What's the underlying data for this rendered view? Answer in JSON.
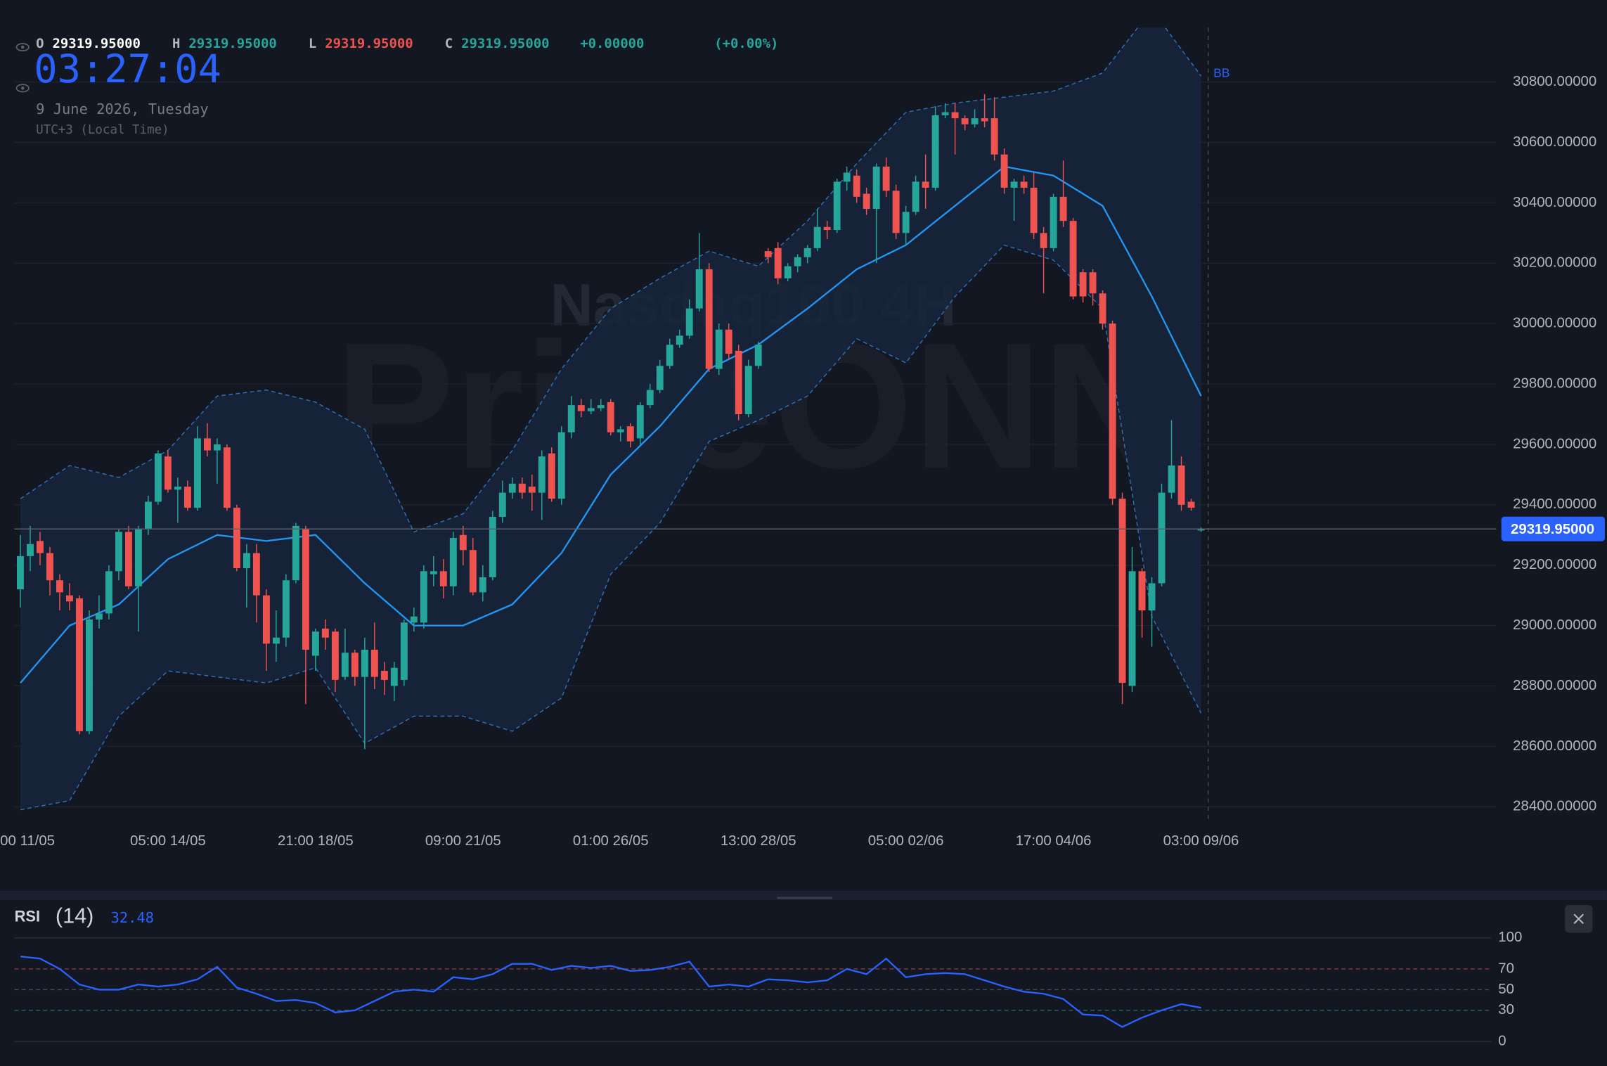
{
  "chart_data": [
    {
      "type": "candlestick",
      "title": "Nasdaq100 4H",
      "watermark": "PriceONN",
      "ohlc_legend": {
        "o_label": "O",
        "o": "29319.95000",
        "h_label": "H",
        "h": "29319.95000",
        "l_label": "L",
        "l": "29319.95000",
        "c_label": "C",
        "c": "29319.95000",
        "change": "+0.00000",
        "change_pct": "(+0.00%)"
      },
      "clock": "03:27:04",
      "date": "9 June 2026, Tuesday",
      "timezone": "UTC+3 (Local Time)",
      "up_color": "#26a69a",
      "down_color": "#ef5350",
      "open": [
        29120,
        29230,
        29280,
        29240,
        29150,
        29100,
        29090,
        28650,
        29020,
        29040,
        29180,
        29310,
        29130,
        29320,
        29410,
        29560,
        29450,
        29460,
        29390,
        29620,
        29580,
        29590,
        29390,
        29190,
        29240,
        29100,
        28940,
        28960,
        29150,
        29320,
        28900,
        28990,
        28980,
        28830,
        28910,
        28830,
        28920,
        28850,
        28800,
        28820,
        29010,
        29010,
        29170,
        29180,
        29130,
        29300,
        29250,
        29110,
        29160,
        29360,
        29440,
        29470,
        29460,
        29440,
        29570,
        29420,
        29640,
        29730,
        29710,
        29720,
        29740,
        29640,
        29660,
        29620,
        29730,
        29780,
        29860,
        29930,
        29960,
        30050,
        30180,
        29850,
        29980,
        29910,
        29700,
        29860,
        30240,
        30250,
        30150,
        30190,
        30220,
        30250,
        30320,
        30310,
        30470,
        30490,
        30430,
        30380,
        30520,
        30440,
        30300,
        30370,
        30470,
        30450,
        30690,
        30700,
        30680,
        30660,
        30680,
        30680,
        30560,
        30450,
        30470,
        30450,
        30300,
        30250,
        30420,
        30340,
        30170,
        30170,
        30100,
        30000,
        29420,
        28800,
        29180,
        29050,
        29140,
        29440,
        29530,
        29410,
        29315
      ],
      "high": [
        29300,
        29330,
        29310,
        29260,
        29170,
        29140,
        29100,
        29050,
        29100,
        29200,
        29320,
        29330,
        29330,
        29430,
        29580,
        29580,
        29490,
        29480,
        29660,
        29670,
        29620,
        29600,
        29400,
        29270,
        29270,
        29120,
        29050,
        29170,
        29340,
        29330,
        28990,
        29020,
        28990,
        28990,
        28920,
        28960,
        29010,
        28880,
        28880,
        29020,
        29060,
        29200,
        29230,
        29220,
        29310,
        29330,
        29290,
        29200,
        29380,
        29480,
        29490,
        29490,
        29500,
        29580,
        29590,
        29660,
        29760,
        29750,
        29750,
        29750,
        29750,
        29660,
        29670,
        29740,
        29800,
        29880,
        29950,
        29980,
        30080,
        30300,
        30200,
        30000,
        30000,
        29930,
        29880,
        29940,
        30250,
        30270,
        30200,
        30230,
        30260,
        30380,
        30340,
        30480,
        30520,
        30510,
        30450,
        30530,
        30550,
        30460,
        30390,
        30490,
        30560,
        30720,
        30730,
        30730,
        30690,
        30710,
        30760,
        30750,
        30580,
        30480,
        30490,
        30500,
        30320,
        30430,
        30540,
        30350,
        30180,
        30180,
        30110,
        30010,
        29440,
        29260,
        29190,
        29160,
        29470,
        29680,
        29560,
        29420,
        29325
      ],
      "low": [
        29060,
        29180,
        29200,
        29100,
        29050,
        29050,
        28640,
        28640,
        28990,
        29020,
        29150,
        29120,
        28980,
        29300,
        29400,
        29440,
        29340,
        29380,
        29380,
        29560,
        29470,
        29380,
        29180,
        29060,
        29010,
        28850,
        28880,
        28930,
        29140,
        28740,
        28850,
        28920,
        28780,
        28820,
        28800,
        28590,
        28790,
        28770,
        28750,
        28800,
        28980,
        28990,
        29130,
        29090,
        29100,
        29200,
        29100,
        29080,
        29150,
        29340,
        29420,
        29420,
        29380,
        29350,
        29410,
        29400,
        29620,
        29690,
        29700,
        29710,
        29630,
        29610,
        29590,
        29600,
        29720,
        29770,
        29850,
        29920,
        29950,
        30040,
        29840,
        29830,
        29880,
        29680,
        29690,
        29850,
        30200,
        30130,
        30140,
        30170,
        30200,
        30240,
        30280,
        30300,
        30440,
        30400,
        30360,
        30200,
        30420,
        30280,
        30260,
        30360,
        30380,
        30440,
        30680,
        30560,
        30640,
        30650,
        30650,
        30540,
        30430,
        30340,
        30430,
        30280,
        30100,
        30240,
        30320,
        30080,
        30070,
        30060,
        29980,
        29400,
        28740,
        28780,
        28960,
        28930,
        29130,
        29420,
        29380,
        29380,
        29310
      ],
      "close": [
        29230,
        29270,
        29240,
        29150,
        29110,
        29080,
        28650,
        29020,
        29040,
        29180,
        29310,
        29130,
        29320,
        29410,
        29570,
        29450,
        29460,
        29390,
        29620,
        29580,
        29600,
        29390,
        29190,
        29240,
        29100,
        28940,
        28960,
        29150,
        29330,
        28920,
        28980,
        28960,
        28820,
        28910,
        28830,
        28920,
        28830,
        28820,
        28860,
        29010,
        29030,
        29180,
        29180,
        29130,
        29290,
        29250,
        29110,
        29160,
        29360,
        29440,
        29470,
        29440,
        29440,
        29560,
        29420,
        29640,
        29730,
        29710,
        29720,
        29730,
        29640,
        29650,
        29610,
        29730,
        29780,
        29860,
        29930,
        29960,
        30050,
        30180,
        29850,
        29980,
        29900,
        29700,
        29860,
        29930,
        30220,
        30150,
        30190,
        30220,
        30250,
        30320,
        30310,
        30470,
        30500,
        30420,
        30380,
        30520,
        30440,
        30300,
        30370,
        30470,
        30450,
        30690,
        30700,
        30680,
        30660,
        30680,
        30670,
        30560,
        30450,
        30470,
        30450,
        30300,
        30250,
        30420,
        30340,
        30090,
        30090,
        30100,
        30000,
        29420,
        28810,
        29180,
        29050,
        29140,
        29440,
        29530,
        29400,
        29390,
        29320
      ],
      "bollinger": {
        "name": "BB",
        "line_color": "#2196f3",
        "band_color": "#2f6fb8",
        "fill_color": "#17253b",
        "x": [
          0,
          5,
          10,
          15,
          20,
          25,
          30,
          35,
          40,
          45,
          50,
          55,
          60,
          65,
          70,
          75,
          80,
          85,
          90,
          95,
          100,
          105,
          110,
          115,
          120
        ],
        "upper": [
          29420,
          29530,
          29490,
          29580,
          29760,
          29780,
          29740,
          29650,
          29310,
          29370,
          29580,
          29850,
          30050,
          30150,
          30240,
          30190,
          30340,
          30530,
          30700,
          30730,
          30750,
          30770,
          30830,
          31040,
          30820
        ],
        "middle": [
          28810,
          29000,
          29070,
          29220,
          29300,
          29280,
          29300,
          29140,
          29000,
          29000,
          29070,
          29240,
          29500,
          29660,
          29850,
          29930,
          30050,
          30180,
          30260,
          30390,
          30520,
          30490,
          30390,
          30090,
          29760
        ],
        "lower": [
          28390,
          28420,
          28700,
          28850,
          28830,
          28810,
          28860,
          28610,
          28700,
          28700,
          28650,
          28760,
          29170,
          29340,
          29610,
          29680,
          29760,
          29950,
          29870,
          30090,
          30260,
          30210,
          30050,
          29030,
          28710
        ]
      },
      "last_price": {
        "value": 29319.95,
        "label": "29319.95000"
      },
      "xlim": [
        -0.6,
        150
      ],
      "xticks": [
        {
          "value": 0,
          "label": "00 11/05"
        },
        {
          "value": 15,
          "label": "05:00 14/05"
        },
        {
          "value": 30,
          "label": "21:00 18/05"
        },
        {
          "value": 45,
          "label": "09:00 21/05"
        },
        {
          "value": 60,
          "label": "01:00 26/05"
        },
        {
          "value": 75,
          "label": "13:00 28/05"
        },
        {
          "value": 90,
          "label": "05:00 02/06"
        },
        {
          "value": 105,
          "label": "17:00 04/06"
        },
        {
          "value": 120,
          "label": "03:00 09/06"
        }
      ],
      "ylim": [
        28356,
        30980
      ],
      "yticks": [
        {
          "value": 28400,
          "label": "28400.00000"
        },
        {
          "value": 28600,
          "label": "28600.00000"
        },
        {
          "value": 28800,
          "label": "28800.00000"
        },
        {
          "value": 29000,
          "label": "29000.00000"
        },
        {
          "value": 29200,
          "label": "29200.00000"
        },
        {
          "value": 29400,
          "label": "29400.00000"
        },
        {
          "value": 29600,
          "label": "29600.00000"
        },
        {
          "value": 29800,
          "label": "29800.00000"
        },
        {
          "value": 30000,
          "label": "30000.00000"
        },
        {
          "value": 30200,
          "label": "30200.00000"
        },
        {
          "value": 30400,
          "label": "30400.00000"
        },
        {
          "value": 30600,
          "label": "30600.00000"
        },
        {
          "value": 30800,
          "label": "30800.00000"
        }
      ],
      "grid": true
    },
    {
      "type": "line",
      "title": "RSI",
      "subtitle": "(14)",
      "last_value": 32.48,
      "color": "#2962ff",
      "x": [
        0,
        2,
        4,
        6,
        8,
        10,
        12,
        14,
        16,
        18,
        20,
        22,
        24,
        26,
        28,
        30,
        32,
        34,
        36,
        38,
        40,
        42,
        44,
        46,
        48,
        50,
        52,
        54,
        56,
        58,
        60,
        62,
        64,
        66,
        68,
        70,
        72,
        74,
        76,
        78,
        80,
        82,
        84,
        86,
        88,
        90,
        92,
        94,
        96,
        98,
        100,
        102,
        104,
        106,
        108,
        110,
        112,
        114,
        116,
        118,
        120
      ],
      "values": [
        82,
        80,
        70,
        55,
        50,
        50,
        55,
        53,
        55,
        60,
        72,
        52,
        46,
        39,
        40,
        37,
        28,
        30,
        39,
        48,
        50,
        48,
        62,
        60,
        65,
        75,
        75,
        69,
        73,
        71,
        73,
        68,
        69,
        72,
        77,
        53,
        55,
        53,
        60,
        59,
        57,
        59,
        70,
        65,
        80,
        62,
        65,
        66,
        65,
        59,
        53,
        48,
        46,
        41,
        26,
        25,
        14,
        23,
        30,
        36,
        32.48
      ],
      "xlim": [
        -0.6,
        150
      ],
      "ylim": [
        0,
        100
      ],
      "yticks": [
        100,
        70,
        50,
        30,
        0
      ],
      "tick_colors": [
        "#2a2e39",
        "#8a3a40",
        "#3e4a56",
        "#2d5c5c",
        "#2a2e39"
      ]
    }
  ]
}
